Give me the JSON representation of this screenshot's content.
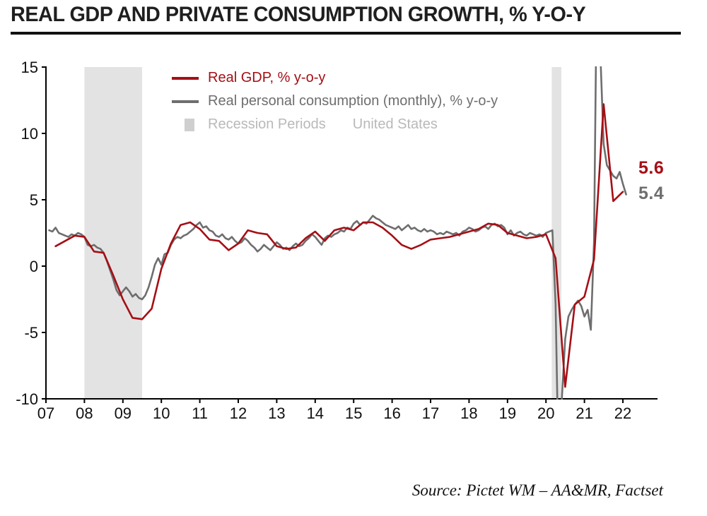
{
  "title": "REAL GDP AND PRIVATE CONSUMPTION GROWTH, % Y-O-Y",
  "source": "Source: Pictet WM – AA&MR, Factset",
  "legend": {
    "gdp": "Real GDP, % y-o-y",
    "consumption": "Real personal consumption (monthly), % y-o-y",
    "recession": "Recession Periods",
    "region": "United States"
  },
  "end_labels": {
    "gdp": "5.6",
    "consumption": "5.4"
  },
  "colors": {
    "gdp": "#a50f15",
    "consumption": "#6e6e6e",
    "recession_band": "#e3e3e3",
    "recession_swatch": "#cfcfcf",
    "legend_muted": "#b9b9b9",
    "axis": "#000000"
  },
  "chart_data": {
    "type": "line",
    "title": "Real GDP and Private Consumption Growth, % y-o-y",
    "xlabel": "",
    "ylabel": "",
    "grid": false,
    "legend_position": "top-left-inside",
    "x_axis": {
      "range": [
        2007,
        2022.9
      ],
      "ticks": [
        2007,
        2008,
        2009,
        2010,
        2011,
        2012,
        2013,
        2014,
        2015,
        2016,
        2017,
        2018,
        2019,
        2020,
        2021,
        2022
      ],
      "tick_labels": [
        "07",
        "08",
        "09",
        "10",
        "11",
        "12",
        "13",
        "14",
        "15",
        "16",
        "17",
        "18",
        "19",
        "20",
        "21",
        "22"
      ]
    },
    "y_axis": {
      "range": [
        -10,
        15
      ],
      "ticks": [
        15,
        10,
        5,
        0,
        -5,
        -10
      ]
    },
    "recession_bands": [
      [
        2008.0,
        2009.5
      ],
      [
        2020.15,
        2020.4
      ]
    ],
    "series": [
      {
        "name": "Real GDP, % y-o-y",
        "color_key": "gdp",
        "frequency": "quarterly",
        "x_start": 2007.25,
        "x_step": 0.25,
        "values": [
          1.5,
          1.9,
          2.3,
          2.2,
          1.1,
          1.0,
          -0.7,
          -2.5,
          -3.9,
          -4.0,
          -3.2,
          -0.2,
          1.7,
          3.1,
          3.3,
          2.8,
          2.0,
          1.9,
          1.2,
          1.7,
          2.7,
          2.5,
          2.4,
          1.5,
          1.3,
          1.4,
          2.1,
          2.6,
          1.9,
          2.7,
          2.9,
          2.7,
          3.3,
          3.3,
          2.9,
          2.3,
          1.6,
          1.3,
          1.6,
          2.0,
          2.1,
          2.2,
          2.4,
          2.6,
          2.8,
          3.2,
          3.1,
          2.5,
          2.3,
          2.1,
          2.2,
          2.4,
          0.6,
          -9.1,
          -2.9,
          -2.3,
          0.5,
          12.2,
          4.9,
          5.6
        ]
      },
      {
        "name": "Real personal consumption (monthly), % y-o-y",
        "color_key": "consumption",
        "frequency": "monthly",
        "x_start": 2007.0833,
        "x_step": 0.0833333,
        "values": [
          2.7,
          2.6,
          2.9,
          2.5,
          2.4,
          2.3,
          2.2,
          2.4,
          2.3,
          2.5,
          2.4,
          2.2,
          1.6,
          1.5,
          1.6,
          1.4,
          1.3,
          1.0,
          0.4,
          -0.3,
          -1.0,
          -1.8,
          -2.2,
          -1.9,
          -1.6,
          -1.9,
          -2.3,
          -2.1,
          -2.4,
          -2.5,
          -2.2,
          -1.6,
          -0.8,
          0.1,
          0.6,
          0.1,
          0.9,
          1.0,
          1.6,
          2.0,
          2.2,
          2.1,
          2.3,
          2.4,
          2.6,
          2.8,
          3.1,
          3.3,
          2.9,
          3.0,
          2.7,
          2.6,
          2.3,
          2.2,
          2.4,
          2.1,
          2.0,
          2.2,
          1.9,
          1.7,
          1.8,
          2.1,
          1.9,
          1.6,
          1.4,
          1.1,
          1.3,
          1.6,
          1.4,
          1.2,
          1.5,
          1.8,
          1.6,
          1.3,
          1.4,
          1.2,
          1.5,
          1.7,
          1.5,
          1.6,
          1.9,
          2.1,
          2.4,
          2.2,
          1.9,
          1.6,
          2.1,
          2.3,
          2.2,
          2.4,
          2.5,
          2.7,
          2.6,
          2.9,
          2.8,
          3.2,
          3.4,
          3.1,
          3.3,
          3.2,
          3.5,
          3.8,
          3.6,
          3.5,
          3.3,
          3.1,
          3.0,
          2.9,
          2.8,
          3.0,
          2.7,
          2.9,
          3.1,
          2.8,
          2.9,
          2.7,
          2.6,
          2.8,
          2.6,
          2.7,
          2.6,
          2.4,
          2.5,
          2.4,
          2.6,
          2.5,
          2.4,
          2.5,
          2.3,
          2.6,
          2.7,
          2.9,
          2.8,
          2.6,
          2.7,
          2.9,
          3.0,
          2.8,
          3.1,
          3.2,
          3.0,
          3.1,
          2.9,
          2.4,
          2.7,
          2.3,
          2.5,
          2.6,
          2.4,
          2.3,
          2.5,
          2.4,
          2.3,
          2.4,
          2.2,
          2.5,
          2.6,
          2.7,
          -2.8,
          -16.2,
          -9.8,
          -5.5,
          -3.8,
          -3.3,
          -2.9,
          -2.6,
          -3.0,
          -3.8,
          -3.3,
          -4.8,
          1.8,
          24.9,
          15.8,
          9.2,
          7.6,
          7.2,
          6.8,
          6.6,
          7.1,
          6.2,
          5.4
        ]
      }
    ]
  }
}
